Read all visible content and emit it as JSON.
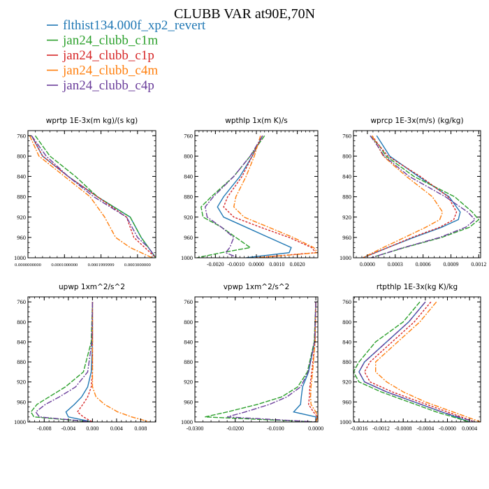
{
  "title": "CLUBB VAR at90E,70N",
  "legend": [
    {
      "name": "flthist134.000f_xp2_revert",
      "color": "#1f77b4"
    },
    {
      "name": "jan24_clubb_c1m",
      "color": "#2ca02c"
    },
    {
      "name": "jan24_clubb_c1p",
      "color": "#d62728"
    },
    {
      "name": "jan24_clubb_c4m",
      "color": "#ff7f0e"
    },
    {
      "name": "jan24_clubb_c4p",
      "color": "#6a3d9a"
    }
  ],
  "chart_data": [
    {
      "type": "line",
      "title": "wprtp  1E-3x(m kg)/(s kg)",
      "xlim": [
        0.0,
        0.00035
      ],
      "ylim": [
        1000,
        750
      ],
      "xticks": [
        0.0,
        0.0001,
        0.0002,
        0.0003
      ],
      "xtick_labels": [
        "0.0000000000",
        "0.0001000000",
        "0.0001999999",
        "0.0003000000"
      ],
      "yticks": [
        760,
        800,
        840,
        880,
        920,
        960,
        1000
      ],
      "y": [
        760,
        800,
        840,
        880,
        920,
        960,
        980,
        1000
      ],
      "series": [
        {
          "name": "flthist134.000f_xp2_revert",
          "values": [
            1e-05,
            4e-05,
            0.00011,
            0.00019,
            0.00028,
            0.00031,
            0.00033,
            0.00035
          ]
        },
        {
          "name": "jan24_clubb_c1m",
          "values": [
            2e-05,
            6e-05,
            0.00013,
            0.00019,
            0.00028,
            0.00031,
            0.00033,
            0.00035
          ]
        },
        {
          "name": "jan24_clubb_c1p",
          "values": [
            1e-05,
            4e-05,
            0.00011,
            0.00019,
            0.00027,
            0.00029,
            0.00032,
            0.00035
          ]
        },
        {
          "name": "jan24_clubb_c4m",
          "values": [
            5e-06,
            3e-05,
            0.0001,
            0.00017,
            0.00021,
            0.00024,
            0.00028,
            0.00034
          ]
        },
        {
          "name": "jan24_clubb_c4p",
          "values": [
            1e-05,
            5e-05,
            0.00011,
            0.00018,
            0.00027,
            0.0003,
            0.00033,
            0.00035
          ]
        }
      ]
    },
    {
      "type": "line",
      "title": "wpthlp  1x(m K)/s",
      "xlim": [
        -0.003,
        0.003
      ],
      "ylim": [
        1000,
        750
      ],
      "xticks": [
        -0.002,
        -0.001,
        0.0,
        0.001,
        0.002
      ],
      "xtick_labels": [
        "-0.0020",
        "-0.0010",
        "0.0000",
        "0.0010",
        "0.0020"
      ],
      "yticks": [
        760,
        800,
        840,
        880,
        920,
        960,
        1000
      ],
      "y": [
        760,
        800,
        840,
        880,
        900,
        920,
        940,
        960,
        980,
        990,
        1000
      ],
      "series": [
        {
          "name": "flthist134.000f_xp2_revert",
          "values": [
            0.0003,
            -0.0002,
            -0.0008,
            -0.0016,
            -0.0019,
            -0.0016,
            -0.0005,
            0.0006,
            0.0017,
            0.0016,
            -0.0005
          ]
        },
        {
          "name": "jan24_clubb_c1m",
          "values": [
            0.0004,
            -0.0003,
            -0.0011,
            -0.0022,
            -0.0027,
            -0.0026,
            -0.0017,
            -0.001,
            -0.0003,
            -0.0017,
            -0.0029
          ]
        },
        {
          "name": "jan24_clubb_c1p",
          "values": [
            0.0003,
            -0.0002,
            -0.0007,
            -0.0014,
            -0.0016,
            -0.0011,
            0.0002,
            0.0016,
            0.0027,
            0.0029,
            -0.0001
          ]
        },
        {
          "name": "jan24_clubb_c4m",
          "values": [
            0.0002,
            -0.0001,
            -0.0005,
            -0.001,
            -0.0011,
            -0.0006,
            0.0006,
            0.0018,
            0.0028,
            0.003,
            0.0
          ]
        },
        {
          "name": "jan24_clubb_c4p",
          "values": [
            0.0003,
            -0.0003,
            -0.0011,
            -0.0021,
            -0.0025,
            -0.0024,
            -0.0017,
            -0.0011,
            -0.0013,
            -0.0015,
            -0.0009
          ]
        }
      ]
    },
    {
      "type": "line",
      "title": "wprcp  1E-3x(m/s) (kg/kg)",
      "xlim": [
        -0.00015,
        0.00122
      ],
      "ylim": [
        1000,
        750
      ],
      "xticks": [
        0.0,
        0.0003,
        0.0006,
        0.0009,
        0.0012
      ],
      "xtick_labels": [
        "0.0000",
        "0.0003",
        "0.0006",
        "0.0009",
        "0.0012"
      ],
      "yticks": [
        760,
        800,
        840,
        880,
        920,
        960,
        1000
      ],
      "y": [
        760,
        780,
        800,
        840,
        880,
        910,
        925,
        940,
        960,
        980,
        1000
      ],
      "series": [
        {
          "name": "flthist134.000f_xp2_revert",
          "values": [
            0.0001,
            0.00017,
            0.00024,
            0.00055,
            0.00088,
            0.001,
            0.00098,
            0.0008,
            0.0005,
            0.00022,
            -5e-05
          ]
        },
        {
          "name": "jan24_clubb_c1m",
          "values": [
            3e-05,
            0.00013,
            0.0002,
            0.0005,
            0.00094,
            0.00113,
            0.0012,
            0.0011,
            0.0008,
            0.0004,
            4e-05
          ]
        },
        {
          "name": "jan24_clubb_c1p",
          "values": [
            5e-05,
            0.00013,
            0.00022,
            0.00057,
            0.00087,
            0.00096,
            0.00093,
            0.00078,
            0.00048,
            0.00022,
            -5e-05
          ]
        },
        {
          "name": "jan24_clubb_c4m",
          "values": [
            5e-05,
            0.00011,
            0.00017,
            0.00042,
            0.0007,
            0.00081,
            0.00078,
            0.00063,
            0.0004,
            0.00017,
            -5e-05
          ]
        },
        {
          "name": "jan24_clubb_c4p",
          "values": [
            3e-05,
            0.00011,
            0.00018,
            0.00045,
            0.00084,
            0.00108,
            0.00116,
            0.00106,
            0.00078,
            0.00039,
            4e-05
          ]
        }
      ]
    },
    {
      "type": "line",
      "title": "upwp  1xm^2/s^2",
      "xlim": [
        -0.0107,
        0.0105
      ],
      "ylim": [
        1000,
        750
      ],
      "xticks": [
        -0.008,
        -0.004,
        0.0,
        0.004,
        0.008
      ],
      "xtick_labels": [
        "-0.008",
        "-0.004",
        "0.000",
        "0.004",
        "0.008"
      ],
      "yticks": [
        760,
        800,
        840,
        880,
        920,
        960,
        1000
      ],
      "y": [
        760,
        840,
        900,
        930,
        950,
        965,
        980,
        990,
        1000
      ],
      "series": [
        {
          "name": "flthist134.000f_xp2_revert",
          "values": [
            0.0,
            0.0,
            -0.0002,
            -0.0008,
            -0.0018,
            -0.003,
            -0.0044,
            -0.004,
            0.0
          ]
        },
        {
          "name": "jan24_clubb_c1m",
          "values": [
            0.0,
            -0.0002,
            -0.0015,
            -0.0045,
            -0.0072,
            -0.0092,
            -0.0102,
            -0.0097,
            0.0
          ]
        },
        {
          "name": "jan24_clubb_c1p",
          "values": [
            0.0,
            0.0,
            0.0,
            -0.0002,
            -0.0008,
            -0.0016,
            -0.0025,
            -0.0015,
            0.0
          ]
        },
        {
          "name": "jan24_clubb_c4m",
          "values": [
            0.0,
            0.0,
            0.0,
            0.0,
            0.0006,
            0.002,
            0.0042,
            0.0065,
            0.0095
          ]
        },
        {
          "name": "jan24_clubb_c4p",
          "values": [
            0.0,
            -0.0001,
            -0.0008,
            -0.0028,
            -0.0055,
            -0.0078,
            -0.0094,
            -0.0088,
            0.0
          ]
        }
      ]
    },
    {
      "type": "line",
      "title": "vpwp  1xm^2/s^2",
      "xlim": [
        -0.03,
        0.0005
      ],
      "ylim": [
        1000,
        750
      ],
      "xticks": [
        -0.03,
        -0.02,
        -0.01,
        0.0
      ],
      "xtick_labels": [
        "-0.0300",
        "-0.0200",
        "-0.0100",
        "0.0000"
      ],
      "yticks": [
        760,
        800,
        840,
        880,
        920,
        960,
        1000
      ],
      "y": [
        760,
        840,
        900,
        930,
        950,
        965,
        980,
        990,
        1000
      ],
      "series": [
        {
          "name": "flthist134.000f_xp2_revert",
          "values": [
            0.0,
            -0.0003,
            -0.0018,
            -0.0033,
            -0.0036,
            -0.0038,
            -0.0055,
            0.0,
            0.0
          ]
        },
        {
          "name": "jan24_clubb_c1m",
          "values": [
            0.0,
            -0.0004,
            -0.0021,
            -0.0045,
            -0.0085,
            -0.0145,
            -0.022,
            -0.0275,
            0.0
          ]
        },
        {
          "name": "jan24_clubb_c1p",
          "values": [
            0.0,
            -0.0002,
            -0.001,
            -0.0015,
            -0.0016,
            -0.0018,
            -0.0006,
            0.0004,
            0.0
          ]
        },
        {
          "name": "jan24_clubb_c4m",
          "values": [
            0.0,
            -0.0002,
            -0.0008,
            -0.0012,
            -0.0013,
            -0.0012,
            0.0,
            0.0005,
            0.0
          ]
        },
        {
          "name": "jan24_clubb_c4p",
          "values": [
            0.0,
            -0.0003,
            -0.0019,
            -0.0038,
            -0.0072,
            -0.0115,
            -0.0175,
            -0.022,
            0.0
          ]
        }
      ]
    },
    {
      "type": "line",
      "title": "rtpthlp  1E-3x(kg K)/kg",
      "xlim": [
        -0.0017,
        0.0006
      ],
      "ylim": [
        1000,
        750
      ],
      "xticks": [
        -0.0016,
        -0.0012,
        -0.0008,
        -0.0004,
        0.0,
        0.0004
      ],
      "xtick_labels": [
        "-0.0016",
        "-0.0012",
        "-0.0008",
        "-0.0004",
        "-0.0000",
        "0.0004"
      ],
      "yticks": [
        760,
        800,
        840,
        880,
        920,
        960,
        1000
      ],
      "y": [
        760,
        800,
        840,
        880,
        900,
        920,
        940,
        960,
        980,
        1000
      ],
      "series": [
        {
          "name": "flthist134.000f_xp2_revert",
          "values": [
            -0.0004,
            -0.0007,
            -0.0011,
            -0.0015,
            -0.0016,
            -0.0015,
            -0.0011,
            -0.0006,
            -0.0001,
            0.0004
          ]
        },
        {
          "name": "jan24_clubb_c1m",
          "values": [
            -0.0005,
            -0.0008,
            -0.0013,
            -0.0016,
            -0.0017,
            -0.0016,
            -0.0012,
            -0.0007,
            -0.0002,
            0.0004
          ]
        },
        {
          "name": "jan24_clubb_c1p",
          "values": [
            -0.0003,
            -0.0006,
            -0.001,
            -0.0014,
            -0.0015,
            -0.0014,
            -0.001,
            -0.0005,
            0.0,
            0.0005
          ]
        },
        {
          "name": "jan24_clubb_c4m",
          "values": [
            -0.0002,
            -0.0005,
            -0.0009,
            -0.0013,
            -0.0013,
            -0.0011,
            -0.0008,
            -0.0004,
            0.0001,
            0.0006
          ]
        },
        {
          "name": "jan24_clubb_c4p",
          "values": [
            -0.0004,
            -0.0007,
            -0.0011,
            -0.0015,
            -0.0016,
            -0.0015,
            -0.0011,
            -0.0006,
            -0.0001,
            0.0005
          ]
        }
      ]
    }
  ]
}
